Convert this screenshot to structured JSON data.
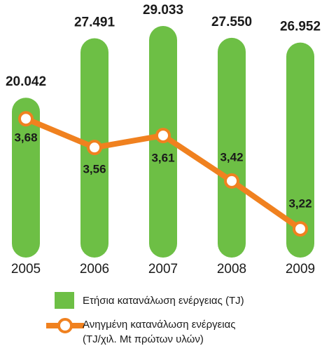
{
  "chart_data": {
    "type": "bar+line",
    "categories": [
      "2005",
      "2006",
      "2007",
      "2008",
      "2009"
    ],
    "series": [
      {
        "name": "Ετήσια κατανάλωση ενέργειας (TJ)",
        "type": "bar",
        "color": "#6dbf45",
        "values": [
          20042,
          27491,
          29033,
          27550,
          26952
        ],
        "value_labels": [
          "20.042",
          "27.491",
          "29.033",
          "27.550",
          "26.952"
        ]
      },
      {
        "name": "Ανηγμένη κατανάλωση ενέργειας (TJ/χιλ. Mt πρώτων υλών)",
        "type": "line",
        "axis": "y2",
        "color": "#f0811f",
        "values": [
          3.68,
          3.56,
          3.61,
          3.42,
          3.22
        ],
        "value_labels": [
          "3,68",
          "3,56",
          "3,61",
          "3,42",
          "3,22"
        ]
      }
    ],
    "ylim": [
      0,
      30000
    ],
    "y2lim": [
      3.1,
      4.1
    ]
  }
}
